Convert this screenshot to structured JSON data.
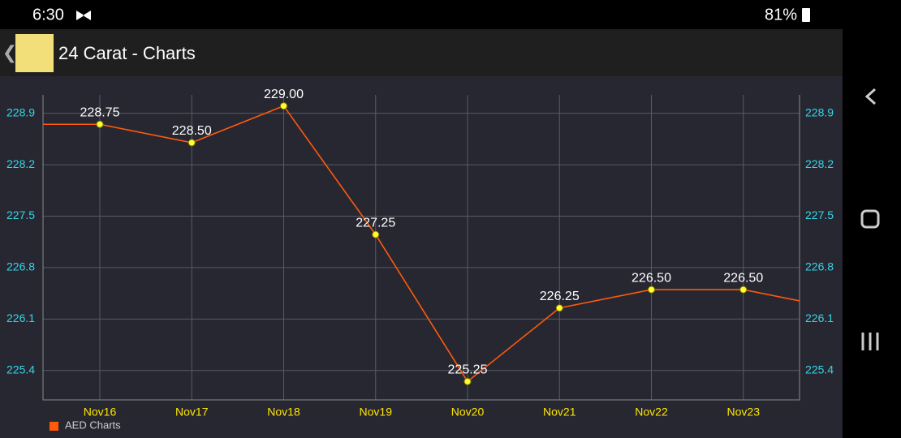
{
  "status_bar": {
    "time": "6:30",
    "battery": "81%"
  },
  "app_bar": {
    "title": "24 Carat - Charts"
  },
  "chart_data": {
    "type": "line",
    "categories": [
      null,
      "Nov16",
      "Nov17",
      "Nov18",
      "Nov19",
      "Nov20",
      "Nov21",
      "Nov22",
      "Nov23",
      null
    ],
    "series": [
      {
        "name": "AED Charts",
        "color": "#ff5a0a",
        "values": [
          228.75,
          228.75,
          228.5,
          229.0,
          227.25,
          225.25,
          226.25,
          226.5,
          226.5,
          226.25
        ],
        "value_labels": [
          null,
          "228.75",
          "228.50",
          "229.00",
          "227.25",
          "225.25",
          "226.25",
          "226.50",
          "226.50",
          null
        ]
      }
    ],
    "ylim": [
      225.0,
      229.15
    ],
    "yticks": [
      225.4,
      226.1,
      226.8,
      227.5,
      228.2,
      228.9
    ],
    "y2lim": [
      225.0,
      229.15
    ],
    "y2ticks": [
      225.4,
      226.1,
      226.8,
      227.5,
      228.2,
      228.9
    ],
    "grid": true,
    "legend": "bottom-left"
  }
}
